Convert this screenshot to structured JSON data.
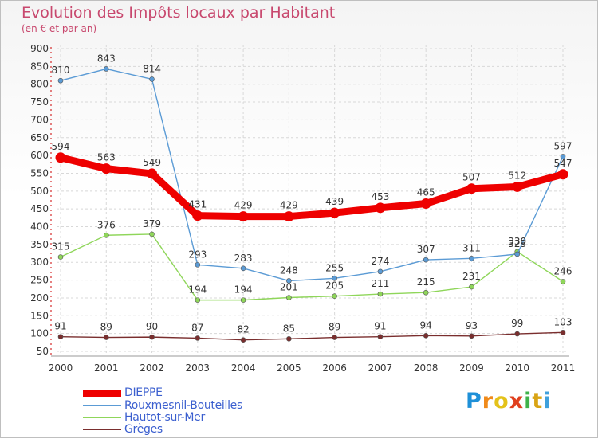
{
  "header": {
    "title": "Evolution des Impôts locaux par Habitant",
    "subtitle": "(en € et par an)"
  },
  "logo": {
    "text": "Proxiti",
    "letter_colors": [
      "#1e90d8",
      "#f08a1a",
      "#e4c21a",
      "#e0401e",
      "#3fb24a",
      "#d9a415",
      "#3fa0dc"
    ]
  },
  "chart_data": {
    "type": "line",
    "title": "Evolution des Impôts locaux par Habitant",
    "subtitle": "(en € et par an)",
    "x": [
      "2000",
      "2001",
      "2002",
      "2003",
      "2004",
      "2005",
      "2006",
      "2007",
      "2008",
      "2009",
      "2010",
      "2011"
    ],
    "ylim": [
      50,
      900
    ],
    "yticks": [
      50,
      100,
      150,
      200,
      250,
      300,
      350,
      400,
      450,
      500,
      550,
      600,
      650,
      700,
      750,
      800,
      850,
      900
    ],
    "grid": true,
    "legend_position": "bottom-left",
    "series": [
      {
        "name": "DIEPPE",
        "color": "#ee0000",
        "emphasis": "thick",
        "values": [
          594,
          563,
          549,
          431,
          429,
          429,
          439,
          453,
          465,
          507,
          512,
          547
        ]
      },
      {
        "name": "Rouxmesnil-Bouteilles",
        "color": "#5b9bd5",
        "emphasis": "thin",
        "values": [
          810,
          843,
          814,
          293,
          283,
          248,
          255,
          274,
          307,
          311,
          323,
          597
        ]
      },
      {
        "name": "Hautot-sur-Mer",
        "color": "#8fd65a",
        "emphasis": "thin",
        "values": [
          315,
          376,
          379,
          194,
          194,
          201,
          205,
          211,
          215,
          231,
          330,
          246
        ]
      },
      {
        "name": "Grèges",
        "color": "#7a2e2e",
        "emphasis": "thin",
        "values": [
          91,
          89,
          90,
          87,
          82,
          85,
          89,
          91,
          94,
          93,
          99,
          103
        ]
      }
    ]
  }
}
